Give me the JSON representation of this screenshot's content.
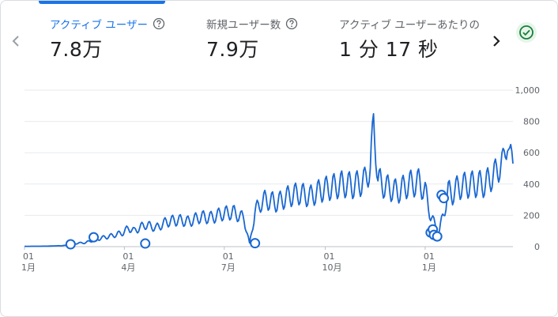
{
  "colors": {
    "accent": "#1a73e8",
    "line": "#1967d2",
    "grid": "#e8eaed",
    "check": "#188038"
  },
  "icons": {
    "prev": "chevron-left-icon",
    "next": "chevron-right-icon",
    "help": "help-circle-icon",
    "status": "check-circle-icon"
  },
  "metrics": [
    {
      "label": "アクティブ ユーザー",
      "value": "7.8万",
      "active": true
    },
    {
      "label": "新規ユーザー数",
      "value": "7.9万",
      "active": false
    },
    {
      "label": "アクティブ ユーザーあたりの",
      "value": "1 分 17 秒",
      "active": false
    }
  ],
  "chart_data": {
    "type": "line",
    "title": "",
    "xlabel": "",
    "ylabel": "",
    "ylim": [
      0,
      1000
    ],
    "yticks": [
      0,
      200,
      400,
      600,
      800,
      1000
    ],
    "ytick_labels": [
      "0",
      "200",
      "400",
      "600",
      "800",
      "1,000"
    ],
    "xlim": [
      0,
      445
    ],
    "xticks": [
      {
        "day": 0,
        "top": "01",
        "bottom": "1月"
      },
      {
        "day": 91,
        "top": "01",
        "bottom": "4月"
      },
      {
        "day": 182,
        "top": "01",
        "bottom": "7月"
      },
      {
        "day": 274,
        "top": "01",
        "bottom": "10月"
      },
      {
        "day": 365,
        "top": "01",
        "bottom": "1月"
      }
    ],
    "series": [
      {
        "values": [
          [
            0,
            2
          ],
          [
            20,
            3
          ],
          [
            40,
            8
          ],
          [
            45,
            20
          ],
          [
            55,
            25
          ],
          [
            60,
            35
          ],
          [
            70,
            55
          ],
          [
            80,
            70
          ],
          [
            90,
            90
          ],
          [
            95,
            120
          ],
          [
            100,
            100
          ],
          [
            110,
            140
          ],
          [
            120,
            120
          ],
          [
            130,
            160
          ],
          [
            140,
            170
          ],
          [
            150,
            160
          ],
          [
            160,
            190
          ],
          [
            170,
            185
          ],
          [
            180,
            210
          ],
          [
            190,
            220
          ],
          [
            200,
            180
          ],
          [
            205,
            20
          ],
          [
            210,
            220
          ],
          [
            215,
            280
          ],
          [
            220,
            300
          ],
          [
            230,
            280
          ],
          [
            240,
            320
          ],
          [
            250,
            340
          ],
          [
            260,
            320
          ],
          [
            270,
            360
          ],
          [
            280,
            380
          ],
          [
            290,
            400
          ],
          [
            300,
            390
          ],
          [
            310,
            420
          ],
          [
            315,
            500
          ],
          [
            318,
            810
          ],
          [
            322,
            420
          ],
          [
            330,
            380
          ],
          [
            340,
            350
          ],
          [
            350,
            400
          ],
          [
            360,
            410
          ],
          [
            365,
            350
          ],
          [
            370,
            200
          ],
          [
            375,
            120
          ],
          [
            378,
            100
          ],
          [
            382,
            220
          ],
          [
            386,
            350
          ],
          [
            390,
            340
          ],
          [
            395,
            380
          ],
          [
            400,
            390
          ],
          [
            410,
            400
          ],
          [
            420,
            400
          ],
          [
            430,
            480
          ],
          [
            436,
            540
          ],
          [
            440,
            680
          ],
          [
            442,
            560
          ],
          [
            444,
            570
          ]
        ]
      }
    ],
    "annotations": [
      {
        "day": 42,
        "value": 15
      },
      {
        "day": 63,
        "value": 60
      },
      {
        "day": 110,
        "value": 20
      },
      {
        "day": 210,
        "value": 22
      },
      {
        "day": 370,
        "value": 90
      },
      {
        "day": 372,
        "value": 110
      },
      {
        "day": 373,
        "value": 75
      },
      {
        "day": 376,
        "value": 65
      },
      {
        "day": 380,
        "value": 330
      },
      {
        "day": 382,
        "value": 310
      }
    ]
  }
}
